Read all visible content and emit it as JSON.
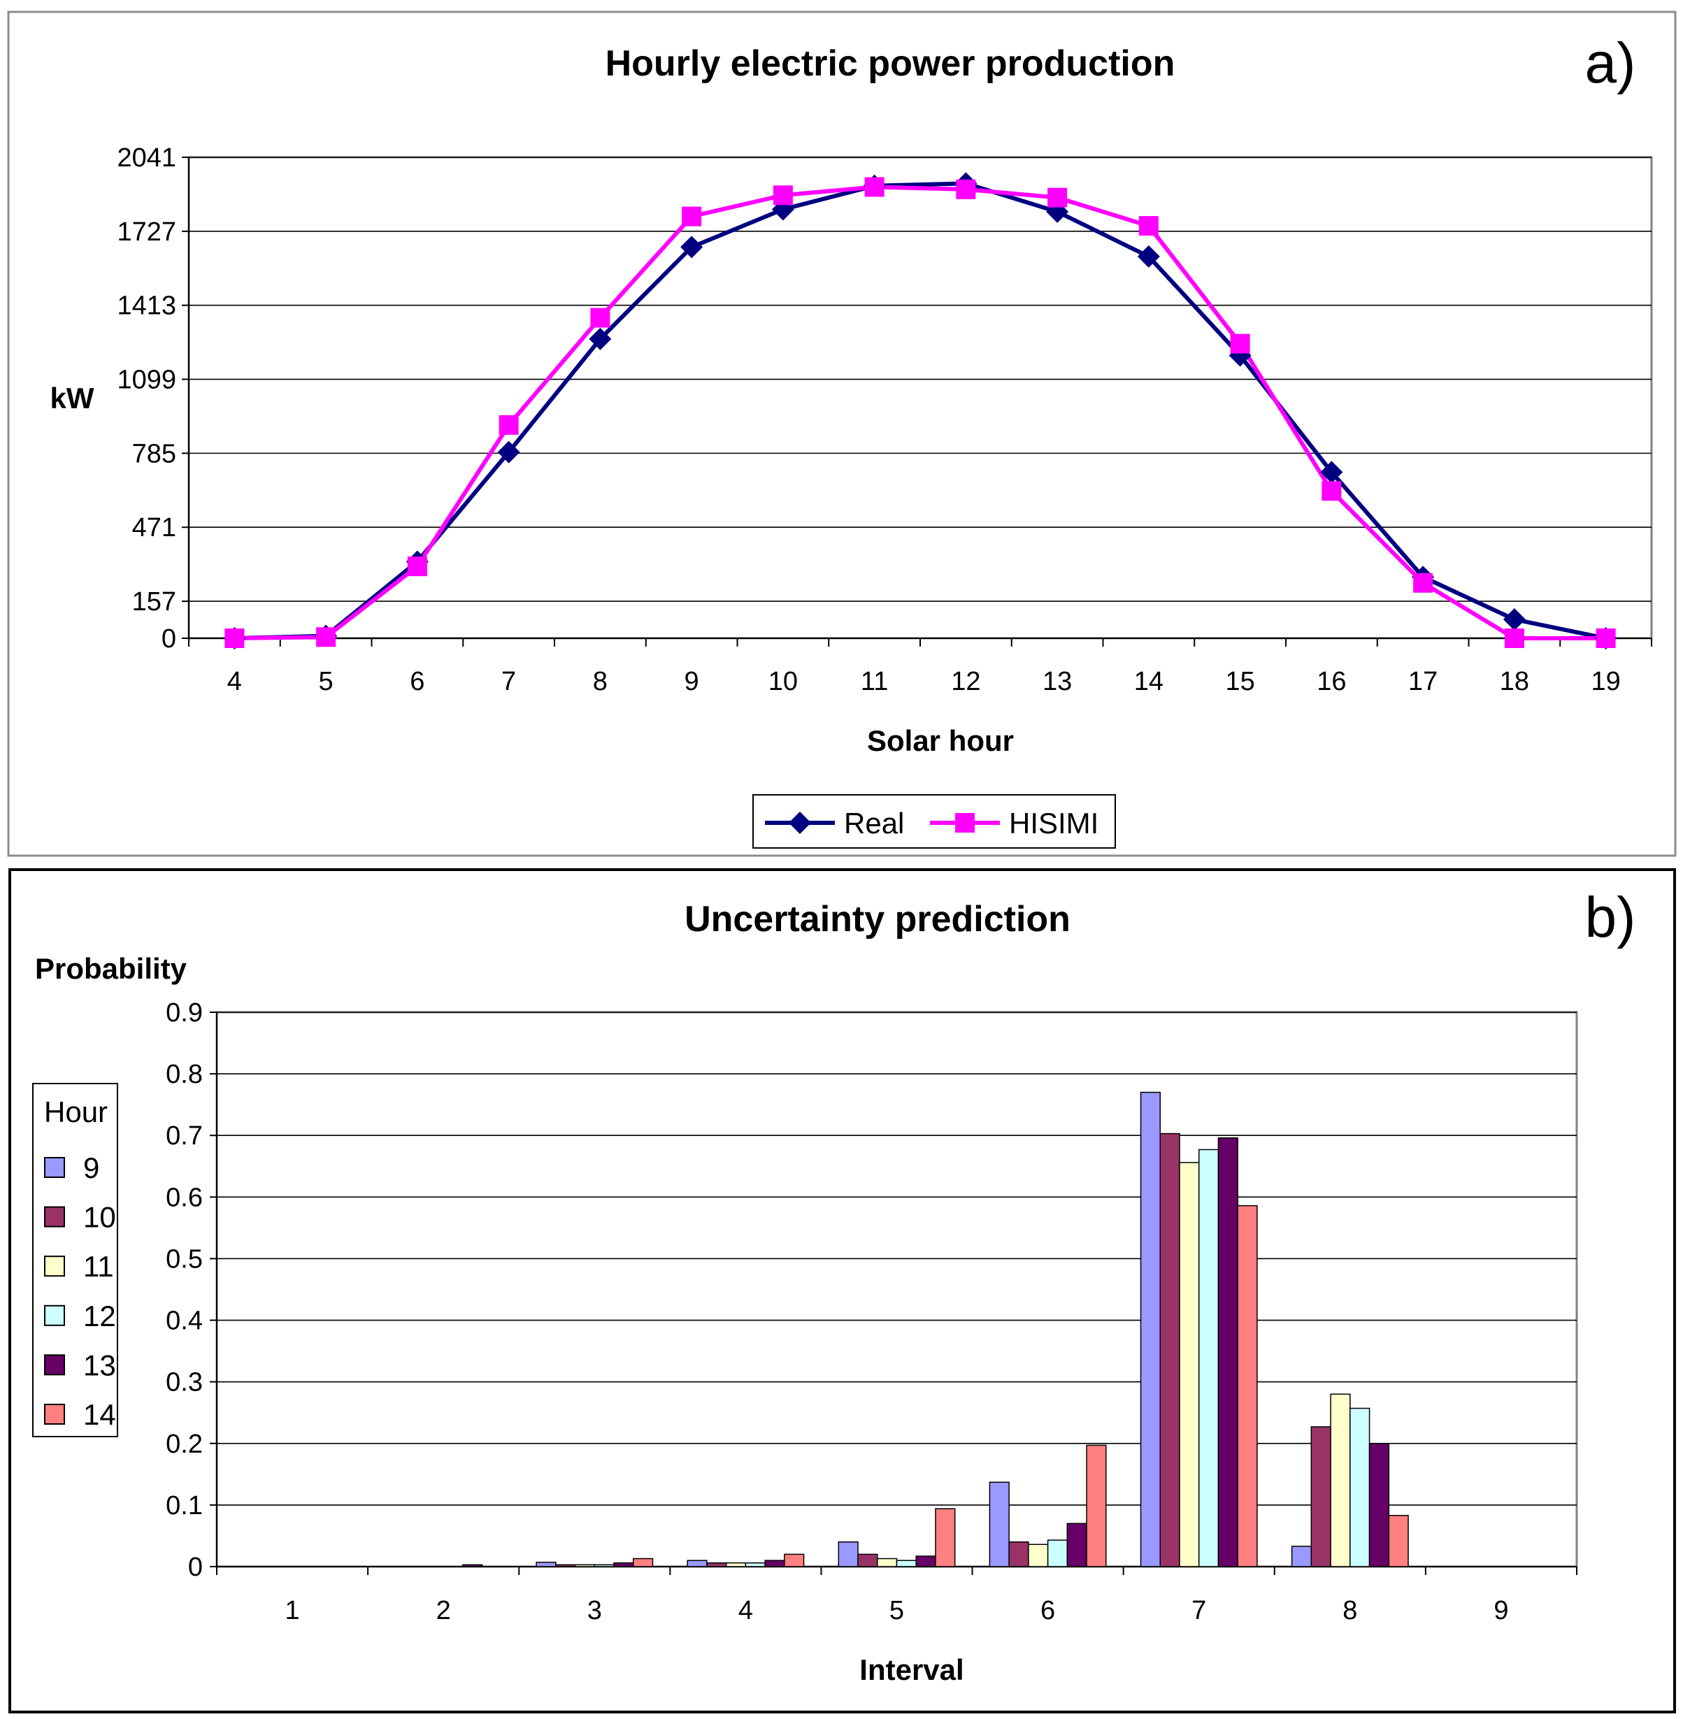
{
  "chart_data": [
    {
      "type": "line",
      "panel_label": "a)",
      "title": "Hourly electric power production",
      "xlabel": "Solar hour",
      "ylabel": "kW",
      "categories": [
        "4",
        "5",
        "6",
        "7",
        "8",
        "9",
        "10",
        "11",
        "12",
        "13",
        "14",
        "15",
        "16",
        "17",
        "18",
        "19"
      ],
      "yticks": [
        0,
        157,
        471,
        785,
        1099,
        1413,
        1727,
        2041
      ],
      "ylim": [
        0,
        2041
      ],
      "grid": true,
      "legend_position": "bottom",
      "series": [
        {
          "name": "Real",
          "color": "#000080",
          "marker": "diamond",
          "values": [
            0,
            10,
            325,
            790,
            1270,
            1660,
            1820,
            1920,
            1930,
            1810,
            1620,
            1200,
            705,
            260,
            80,
            0
          ]
        },
        {
          "name": "HISIMI",
          "color": "#ff00ff",
          "marker": "square",
          "values": [
            0,
            5,
            305,
            905,
            1360,
            1790,
            1880,
            1915,
            1905,
            1870,
            1750,
            1250,
            625,
            235,
            0,
            0
          ]
        }
      ]
    },
    {
      "type": "bar",
      "panel_label": "b)",
      "title": "Uncertainty prediction",
      "xlabel": "Interval",
      "ylabel": "Probability",
      "categories": [
        "1",
        "2",
        "3",
        "4",
        "5",
        "6",
        "7",
        "8",
        "9"
      ],
      "yticks": [
        "0",
        "0.1",
        "0.2",
        "0.3",
        "0.4",
        "0.5",
        "0.6",
        "0.7",
        "0.8",
        "0.9"
      ],
      "ylim": [
        0,
        0.9
      ],
      "grid": true,
      "legend_title": "Hour",
      "legend_position": "left",
      "series": [
        {
          "name": "9",
          "color": "#9999ff",
          "values": [
            0,
            0,
            0.007,
            0.01,
            0.04,
            0.137,
            0.77,
            0.033,
            0
          ]
        },
        {
          "name": "10",
          "color": "#993366",
          "values": [
            0,
            0,
            0.003,
            0.006,
            0.02,
            0.04,
            0.703,
            0.227,
            0
          ]
        },
        {
          "name": "11",
          "color": "#ffffcc",
          "values": [
            0,
            0,
            0.003,
            0.006,
            0.013,
            0.036,
            0.656,
            0.28,
            0
          ]
        },
        {
          "name": "12",
          "color": "#ccffff",
          "values": [
            0,
            0,
            0.003,
            0.006,
            0.01,
            0.043,
            0.677,
            0.257,
            0
          ]
        },
        {
          "name": "13",
          "color": "#660066",
          "values": [
            0,
            0.003,
            0.006,
            0.01,
            0.017,
            0.07,
            0.696,
            0.2,
            0
          ]
        },
        {
          "name": "14",
          "color": "#ff8080",
          "values": [
            0,
            0,
            0.013,
            0.02,
            0.094,
            0.197,
            0.586,
            0.083,
            0
          ]
        }
      ]
    }
  ]
}
